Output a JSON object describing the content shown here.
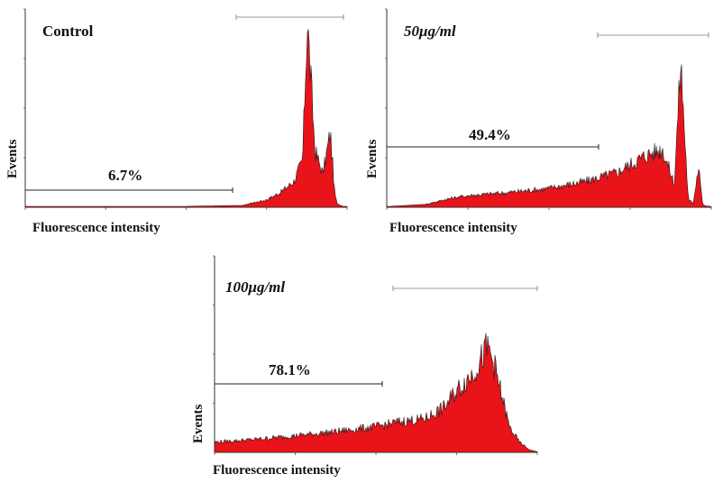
{
  "chart_data": [
    {
      "type": "area",
      "title": "Control",
      "xlabel": "Fluorescence intensity",
      "ylabel": "Events",
      "x_scale": "log",
      "xlim": [
        1,
        10000
      ],
      "gate_label": "6.7%",
      "fill_color": "#e8141a",
      "x": [
        1,
        10,
        100,
        500,
        1000,
        1500,
        2200,
        2800,
        3200,
        4000,
        5000,
        6200,
        7000,
        7500,
        8200,
        9000,
        10000
      ],
      "values": [
        0.5,
        0.5,
        0.5,
        1,
        4,
        8,
        14,
        25,
        100,
        30,
        18,
        40,
        8,
        2,
        1,
        0.5,
        0.5
      ]
    },
    {
      "type": "area",
      "title": "50μg/ml",
      "xlabel": "Fluorescence intensity",
      "ylabel": "Events",
      "x_scale": "log",
      "xlim": [
        1,
        10000
      ],
      "gate_label": "49.4%",
      "fill_color": "#e8141a",
      "x": [
        1,
        3,
        6,
        10,
        30,
        100,
        300,
        700,
        1500,
        2500,
        3500,
        4200,
        5200,
        6000,
        7000,
        7800,
        8500,
        10000
      ],
      "values": [
        0.5,
        2,
        6,
        8,
        10,
        13,
        18,
        24,
        35,
        40,
        16,
        100,
        5,
        3,
        30,
        2,
        1,
        0.5
      ]
    },
    {
      "type": "area",
      "title": "100μg/ml",
      "xlabel": "Fluorescence intensity",
      "ylabel": "Events",
      "x_scale": "log",
      "xlim": [
        1,
        10000
      ],
      "gate_label": "78.1%",
      "fill_color": "#e8141a",
      "x": [
        1,
        3,
        10,
        30,
        100,
        200,
        400,
        700,
        1000,
        1500,
        2000,
        2400,
        2800,
        3500,
        4500,
        6000,
        8000,
        10000
      ],
      "values": [
        8,
        10,
        13,
        16,
        20,
        24,
        26,
        35,
        48,
        60,
        72,
        82,
        73,
        48,
        20,
        8,
        2,
        0.5
      ]
    }
  ]
}
